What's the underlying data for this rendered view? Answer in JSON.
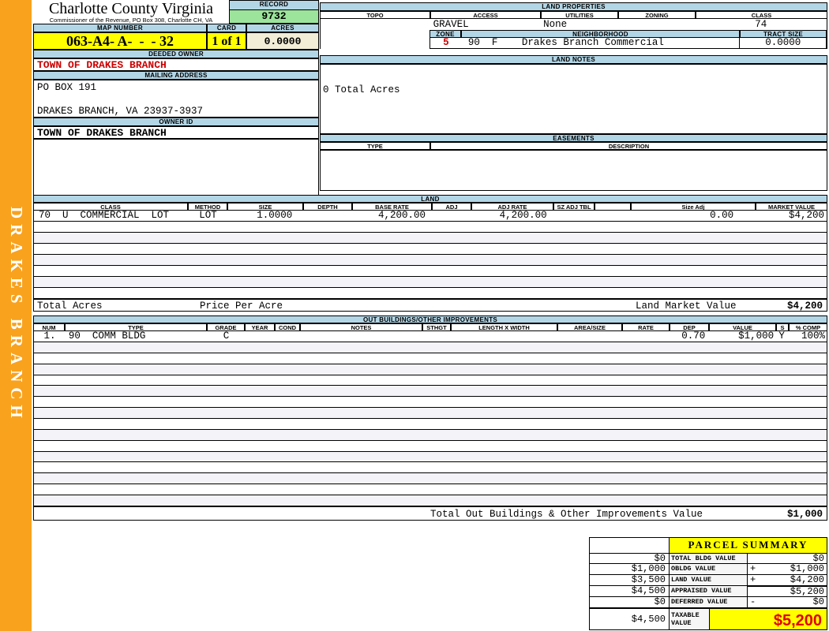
{
  "sidebar": {
    "text": "DRAKES BRANCH"
  },
  "header": {
    "county_title": "Charlotte County Virginia",
    "commissioner_line": "Commissioner of the Revenue, PO Box 308, Charlotte CH, VA",
    "record_label": "RECORD",
    "record_value": "9732",
    "map_number_label": "MAP NUMBER",
    "map_number_value": "063-A4- A-  -  - 32",
    "card_label": "CARD",
    "card_value": "1 of 1",
    "acres_label": "ACRES",
    "acres_value": "0.0000"
  },
  "owner": {
    "deeded_owner_label": "DEEDED OWNER",
    "deeded_owner_value": "TOWN OF DRAKES BRANCH",
    "mailing_address_label": "MAILING ADDRESS",
    "address_line1": "PO BOX 191",
    "address_line2": "DRAKES BRANCH, VA 23937-3937",
    "owner_id_label": "OWNER ID",
    "owner_id_value": "TOWN OF DRAKES BRANCH"
  },
  "land_properties": {
    "title": "LAND PROPERTIES",
    "columns": [
      "TOPO",
      "ACCESS",
      "UTILITIES",
      "ZONING",
      "CLASS"
    ],
    "topo_value": "",
    "access_value": "GRAVEL",
    "utilities_value": "None",
    "zoning_value": "",
    "class_value": "74",
    "zone_label": "ZONE",
    "zone_value": "5",
    "zone_extra": "90  F",
    "neighborhood_label": "NEIGHBORHOOD",
    "neighborhood_value": "Drakes Branch Commercial",
    "tract_size_label": "TRACT SIZE",
    "tract_size_value": "0.0000"
  },
  "land_notes": {
    "title": "LAND NOTES",
    "note": "0 Total Acres"
  },
  "easements": {
    "title": "EASEMENTS",
    "type_label": "TYPE",
    "description_label": "DESCRIPTION"
  },
  "land_table": {
    "title": "LAND",
    "columns": [
      "CLASS",
      "METHOD",
      "SIZE",
      "DEPTH",
      "BASE RATE",
      "ADJ",
      "ADJ RATE",
      "SZ ADJ TBL",
      "",
      "Size Adj",
      "MARKET VALUE"
    ],
    "row": {
      "class": "70  U  COMMERCIAL  LOT",
      "method": "LOT",
      "size": "1.0000",
      "depth": "",
      "base_rate": "4,200.00",
      "adj": "",
      "adj_rate": "4,200.00",
      "sz_adj_tbl": "",
      "size_adj": "0.00",
      "market_value": "$4,200"
    },
    "totals": {
      "total_acres_label": "Total Acres",
      "price_per_acre_label": "Price Per Acre",
      "land_market_value_label": "Land Market Value",
      "land_market_value": "$4,200"
    }
  },
  "out_buildings": {
    "title": "OUT BUILDINGS/OTHER IMPROVEMENTS",
    "columns": [
      "NUM",
      "TYPE",
      "GRADE",
      "YEAR",
      "COND",
      "NOTES",
      "STHGT",
      "LENGTH X WIDTH",
      "AREA/SIZE",
      "RATE",
      "DEP",
      "VALUE",
      "S",
      "% COMP"
    ],
    "row": {
      "num": "1.",
      "type": "90  COMM BLDG",
      "grade": "C",
      "year": "",
      "cond": "",
      "notes": "",
      "sthgt": "",
      "length_x_width": "",
      "area_size": "",
      "rate": "",
      "dep": "0.70",
      "value": "$1,000",
      "s": "Y",
      "pct_comp": "100%"
    },
    "total_label": "Total Out Buildings & Other Improvements Value",
    "total_value": "$1,000"
  },
  "parcel_summary": {
    "title": "PARCEL SUMMARY",
    "rows": [
      {
        "left": "$0",
        "label": "TOTAL BLDG VALUE",
        "op": "",
        "right": "$0"
      },
      {
        "left": "$1,000",
        "label": "OBLDG VALUE",
        "op": "+",
        "right": "$1,000"
      },
      {
        "left": "$3,500",
        "label": "LAND VALUE",
        "op": "+",
        "right": "$4,200"
      },
      {
        "left": "$4,500",
        "label": "APPRAISED VALUE",
        "op": "",
        "right": "$5,200"
      },
      {
        "left": "$0",
        "label": "DEFERRED VALUE",
        "op": "-",
        "right": "$0"
      },
      {
        "left": "$4,500",
        "label": "TAXABLE VALUE",
        "op": "",
        "right": "$5,200"
      }
    ]
  },
  "colors": {
    "header_blue": "#b3d6e6",
    "record_green": "#9ce49c",
    "highlight_yellow": "#ffff00",
    "acres_cream": "#f2edd7",
    "sidebar_orange": "#f9a21d",
    "alert_red": "#cc0000",
    "taxable_red": "#e00000",
    "alt_row": "#f3f3f8"
  },
  "layout_counts": {
    "land_empty_rows": 7,
    "outbuilding_empty_rows": 15
  }
}
